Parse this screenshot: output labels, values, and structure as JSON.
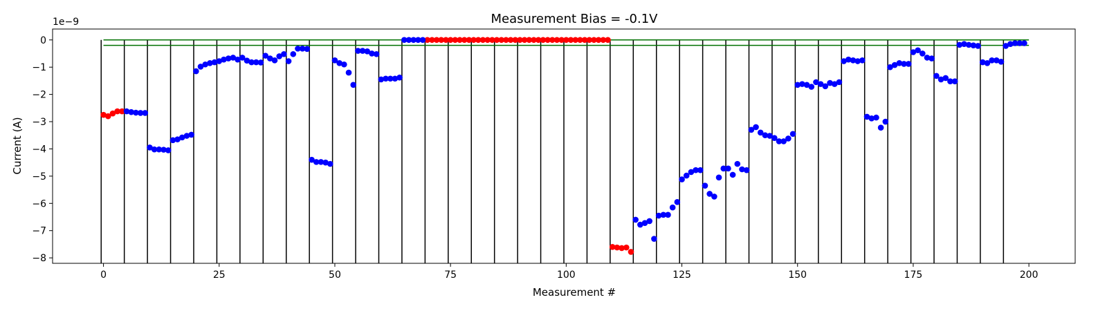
{
  "chart_data": {
    "type": "scatter",
    "title": "Measurement Bias = -0.1V",
    "xlabel": "Measurement #",
    "ylabel": "Current (A)",
    "offset_text": "1e−9",
    "xlim": [
      -11,
      210
    ],
    "ylim": [
      -8.2,
      0.4
    ],
    "x_ticks": [
      0,
      25,
      50,
      75,
      100,
      125,
      150,
      175,
      200
    ],
    "x_tick_labels": [
      "0",
      "25",
      "50",
      "75",
      "100",
      "125",
      "150",
      "175",
      "200"
    ],
    "y_ticks": [
      0,
      -1,
      -2,
      -3,
      -4,
      -5,
      -6,
      -7,
      -8
    ],
    "y_tick_labels": [
      "0",
      "−1",
      "−2",
      "−3",
      "−4",
      "−5",
      "−6",
      "−7",
      "−8"
    ],
    "grid": false,
    "colors": {
      "pass": "#0000ff",
      "fail": "#ff0000",
      "limit": "#007000",
      "group_line": "#000000"
    },
    "limit_lines": [
      {
        "y": 0.0,
        "x_range": [
          0,
          200
        ]
      },
      {
        "y": -0.2,
        "x_range": [
          0,
          200
        ]
      }
    ],
    "group_boundaries": [
      -0.5,
      4.5,
      9.5,
      14.5,
      19.5,
      24.5,
      29.5,
      34.5,
      39.5,
      44.5,
      49.5,
      54.5,
      59.5,
      64.5,
      69.5,
      74.5,
      79.5,
      84.5,
      89.5,
      94.5,
      99.5,
      104.5,
      109.5,
      114.5,
      119.5,
      124.5,
      129.5,
      134.5,
      139.5,
      144.5,
      149.5,
      154.5,
      159.5,
      164.5,
      169.5,
      174.5,
      179.5,
      184.5,
      189.5,
      194.5
    ],
    "series": [
      {
        "color_key": "fail",
        "x": [
          0,
          1,
          2,
          3,
          4,
          70,
          71,
          72,
          73,
          74,
          75,
          76,
          77,
          78,
          79,
          80,
          81,
          82,
          83,
          84,
          85,
          86,
          87,
          88,
          89,
          90,
          91,
          92,
          93,
          94,
          95,
          96,
          97,
          98,
          99,
          100,
          101,
          102,
          103,
          104,
          105,
          106,
          107,
          108,
          109,
          110,
          111,
          112,
          113,
          114
        ],
        "y": [
          -2.75,
          -2.8,
          -2.7,
          -2.62,
          -2.62,
          0,
          0,
          0,
          0,
          0,
          0,
          0,
          0,
          0,
          0,
          0,
          0,
          0,
          0,
          0,
          0,
          0,
          0,
          0,
          0,
          0,
          0,
          0,
          0,
          0,
          0,
          0,
          0,
          0,
          0,
          0,
          0,
          0,
          0,
          0,
          0,
          0,
          0,
          0,
          0,
          -7.6,
          -7.62,
          -7.64,
          -7.62,
          -7.78
        ]
      },
      {
        "color_key": "pass",
        "x": [
          5,
          6,
          7,
          8,
          9,
          10,
          11,
          12,
          13,
          14,
          15,
          16,
          17,
          18,
          19,
          20,
          21,
          22,
          23,
          24,
          25,
          26,
          27,
          28,
          29,
          30,
          31,
          32,
          33,
          34,
          35,
          36,
          37,
          38,
          39,
          40,
          41,
          42,
          43,
          44,
          45,
          46,
          47,
          48,
          49,
          50,
          51,
          52,
          53,
          54,
          55,
          56,
          57,
          58,
          59,
          60,
          61,
          62,
          63,
          64,
          65,
          66,
          67,
          68,
          69,
          115,
          116,
          117,
          118,
          119,
          120,
          121,
          122,
          123,
          124,
          125,
          126,
          127,
          128,
          129,
          130,
          131,
          132,
          133,
          134,
          135,
          136,
          137,
          138,
          139,
          140,
          141,
          142,
          143,
          144,
          145,
          146,
          147,
          148,
          149,
          150,
          151,
          152,
          153,
          154,
          155,
          156,
          157,
          158,
          159,
          160,
          161,
          162,
          163,
          164,
          165,
          166,
          167,
          168,
          169,
          170,
          171,
          172,
          173,
          174,
          175,
          176,
          177,
          178,
          179,
          180,
          181,
          182,
          183,
          184,
          185,
          186,
          187,
          188,
          189,
          190,
          191,
          192,
          193,
          194,
          195,
          196,
          197,
          198,
          199
        ],
        "y": [
          -2.62,
          -2.65,
          -2.67,
          -2.68,
          -2.68,
          -3.95,
          -4.02,
          -4.02,
          -4.03,
          -4.05,
          -3.68,
          -3.65,
          -3.58,
          -3.52,
          -3.48,
          -1.15,
          -0.98,
          -0.9,
          -0.85,
          -0.82,
          -0.78,
          -0.72,
          -0.68,
          -0.65,
          -0.72,
          -0.65,
          -0.76,
          -0.82,
          -0.82,
          -0.83,
          -0.58,
          -0.68,
          -0.75,
          -0.6,
          -0.52,
          -0.78,
          -0.52,
          -0.32,
          -0.32,
          -0.33,
          -4.4,
          -4.48,
          -4.48,
          -4.5,
          -4.55,
          -0.75,
          -0.85,
          -0.9,
          -1.2,
          -1.65,
          -0.4,
          -0.4,
          -0.42,
          -0.5,
          -0.52,
          -1.45,
          -1.42,
          -1.42,
          -1.42,
          -1.38,
          0,
          0,
          0,
          0,
          0,
          -6.6,
          -6.78,
          -6.72,
          -6.65,
          -7.3,
          -6.45,
          -6.42,
          -6.42,
          -6.15,
          -5.95,
          -5.12,
          -4.98,
          -4.85,
          -4.78,
          -4.78,
          -5.35,
          -5.65,
          -5.75,
          -5.05,
          -4.72,
          -4.72,
          -4.95,
          -4.55,
          -4.75,
          -4.78,
          -3.3,
          -3.2,
          -3.4,
          -3.5,
          -3.52,
          -3.6,
          -3.72,
          -3.72,
          -3.62,
          -3.45,
          -1.65,
          -1.62,
          -1.65,
          -1.72,
          -1.55,
          -1.62,
          -1.7,
          -1.58,
          -1.62,
          -1.55,
          -0.78,
          -0.72,
          -0.75,
          -0.78,
          -0.75,
          -2.82,
          -2.88,
          -2.85,
          -3.22,
          -3.0,
          -1.0,
          -0.92,
          -0.85,
          -0.88,
          -0.88,
          -0.45,
          -0.38,
          -0.5,
          -0.65,
          -0.68,
          -1.32,
          -1.45,
          -1.4,
          -1.52,
          -1.52,
          -0.18,
          -0.15,
          -0.18,
          -0.2,
          -0.22,
          -0.82,
          -0.85,
          -0.75,
          -0.75,
          -0.8,
          -0.22,
          -0.15,
          -0.12,
          -0.12,
          -0.12
        ]
      }
    ]
  }
}
